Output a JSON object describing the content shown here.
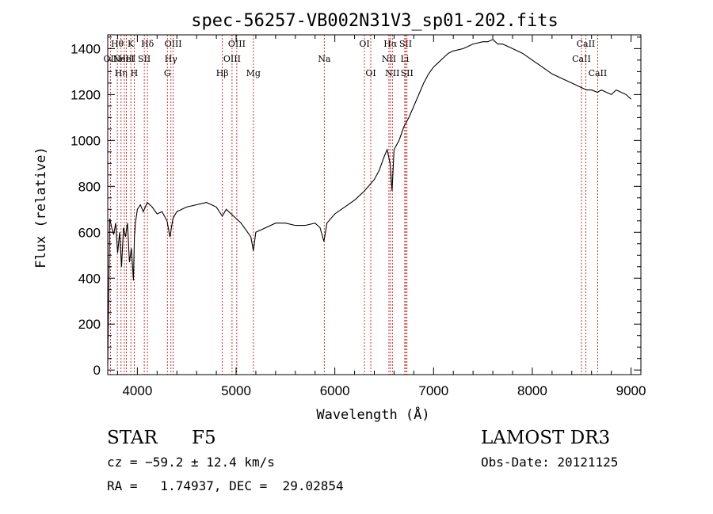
{
  "chart_data": {
    "type": "line",
    "title": "spec-56257-VB002N31V3_sp01-202.fits",
    "xlabel": "Wavelength (Å)",
    "ylabel": "Flux (relative)",
    "xlim": [
      3700,
      9100
    ],
    "ylim": [
      -20,
      1460
    ],
    "x_ticks": [
      4000,
      5000,
      6000,
      7000,
      8000,
      9000
    ],
    "y_ticks": [
      0,
      200,
      400,
      600,
      800,
      1000,
      1200,
      1400
    ],
    "grid": false,
    "series": [
      {
        "name": "flux",
        "x": [
          3700,
          3720,
          3740,
          3760,
          3780,
          3800,
          3820,
          3840,
          3860,
          3880,
          3900,
          3920,
          3940,
          3960,
          3970,
          3980,
          4000,
          4030,
          4060,
          4100,
          4150,
          4200,
          4250,
          4300,
          4330,
          4360,
          4400,
          4450,
          4500,
          4600,
          4700,
          4800,
          4860,
          4900,
          4950,
          5000,
          5050,
          5100,
          5150,
          5175,
          5200,
          5300,
          5400,
          5500,
          5600,
          5700,
          5800,
          5850,
          5890,
          5920,
          6000,
          6100,
          6200,
          6300,
          6400,
          6450,
          6500,
          6530,
          6560,
          6580,
          6600,
          6650,
          6700,
          6750,
          6800,
          6850,
          6900,
          6950,
          7000,
          7050,
          7100,
          7150,
          7200,
          7300,
          7400,
          7500,
          7550,
          7600,
          7650,
          7700,
          7800,
          7900,
          8000,
          8100,
          8200,
          8300,
          8400,
          8450,
          8500,
          8550,
          8600,
          8660,
          8700,
          8750,
          8800,
          8850,
          8900,
          8950,
          9000
        ],
        "values": [
          20,
          660,
          620,
          590,
          640,
          510,
          600,
          450,
          620,
          580,
          640,
          470,
          530,
          390,
          580,
          640,
          700,
          720,
          690,
          730,
          710,
          680,
          690,
          650,
          580,
          660,
          690,
          700,
          710,
          720,
          730,
          710,
          670,
          700,
          680,
          660,
          640,
          610,
          580,
          520,
          600,
          620,
          640,
          640,
          630,
          630,
          640,
          620,
          560,
          640,
          680,
          710,
          740,
          780,
          830,
          870,
          930,
          960,
          900,
          780,
          960,
          1000,
          1060,
          1100,
          1150,
          1200,
          1250,
          1290,
          1320,
          1340,
          1360,
          1380,
          1390,
          1400,
          1420,
          1430,
          1430,
          1440,
          1420,
          1420,
          1400,
          1380,
          1350,
          1320,
          1290,
          1270,
          1250,
          1240,
          1230,
          1220,
          1220,
          1210,
          1220,
          1210,
          1200,
          1220,
          1210,
          1200,
          1180
        ]
      }
    ],
    "lines": [
      {
        "x": 3727,
        "label": "OII",
        "row": 1
      },
      {
        "x": 3797,
        "label": "Hθ",
        "row": 0
      },
      {
        "x": 3835,
        "label": "Hη",
        "row": 2
      },
      {
        "x": 3868,
        "label": "NeIII",
        "row": 1
      },
      {
        "x": 3889,
        "label": "HeI",
        "row": 1
      },
      {
        "x": 3934,
        "label": "K",
        "row": 0
      },
      {
        "x": 3968,
        "label": "H",
        "row": 2
      },
      {
        "x": 4070,
        "label": "SII",
        "row": 1
      },
      {
        "x": 4102,
        "label": "Hδ",
        "row": 0
      },
      {
        "x": 4304,
        "label": "G",
        "row": 2
      },
      {
        "x": 4340,
        "label": "Hγ",
        "row": 1
      },
      {
        "x": 4363,
        "label": "OIII",
        "row": 0
      },
      {
        "x": 4861,
        "label": "Hβ",
        "row": 2
      },
      {
        "x": 4959,
        "label": "OIII",
        "row": 1
      },
      {
        "x": 5007,
        "label": "OIII",
        "row": 0
      },
      {
        "x": 5175,
        "label": "Mg",
        "row": 2
      },
      {
        "x": 5893,
        "label": "Na",
        "row": 1
      },
      {
        "x": 6300,
        "label": "OI",
        "row": 0
      },
      {
        "x": 6364,
        "label": "OI",
        "row": 2
      },
      {
        "x": 6548,
        "label": "NII",
        "row": 1
      },
      {
        "x": 6563,
        "label": "Hα",
        "row": 0
      },
      {
        "x": 6583,
        "label": "NII",
        "row": 2
      },
      {
        "x": 6708,
        "label": "Li",
        "row": 1
      },
      {
        "x": 6717,
        "label": "SII",
        "row": 0
      },
      {
        "x": 6731,
        "label": "SII",
        "row": 2
      },
      {
        "x": 8498,
        "label": "CaII",
        "row": 1
      },
      {
        "x": 8542,
        "label": "CaII",
        "row": 0
      },
      {
        "x": 8662,
        "label": "CaII",
        "row": 2
      }
    ]
  },
  "info": {
    "class_label": "STAR",
    "subclass": "F5",
    "survey": "LAMOST DR3",
    "cz": "cz = −59.2 ± 12.4 km/s",
    "obs_date": "Obs-Date: 20121125",
    "coords": "RA =   1.74937, DEC =  29.02854"
  }
}
